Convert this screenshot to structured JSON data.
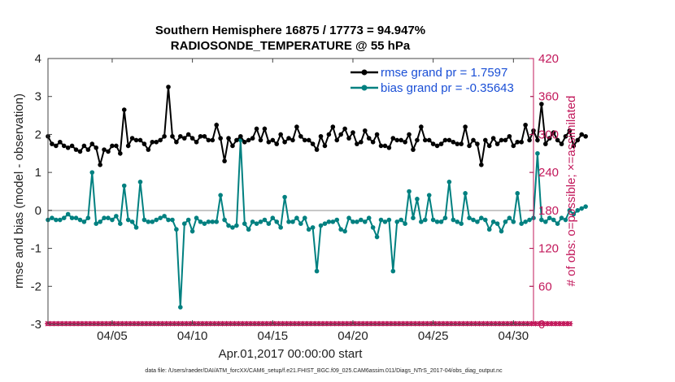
{
  "chart_data": {
    "type": "line",
    "title": "Southern Hemisphere 16875 / 17773 = 94.947%",
    "subtitle": "RADIOSONDE_TEMPERATURE @ 55 hPa",
    "xlabel": "Apr.01,2017 00:00:00 start",
    "ylabel": "rmse and bias (model - observation)",
    "y2label": "# of obs: o=possible; ×=assimilated",
    "footnote": "data file: /Users/raeder/DAI/ATM_forcXX/CAM6_setup/f.e21.FHIST_BGC.f09_025.CAM6assim.011/Diags_NTrS_2017-04/obs_diag_output.nc",
    "ylim": [
      -3,
      4
    ],
    "y2lim": [
      0,
      420
    ],
    "xlim": [
      1.0,
      31.25
    ],
    "x_ticks": [
      5,
      10,
      15,
      20,
      25,
      30
    ],
    "x_tick_labels": [
      "04/05",
      "04/10",
      "04/15",
      "04/20",
      "04/25",
      "04/30"
    ],
    "y_ticks": [
      "-3",
      "-2",
      "-1",
      "0",
      "1",
      "2",
      "3",
      "4"
    ],
    "y2_ticks": [
      "0",
      "60",
      "120",
      "180",
      "240",
      "300",
      "360",
      "420"
    ],
    "legend": {
      "position": "top-right",
      "entries": [
        "rmse grand pr = 1.7597",
        "bias grand pr = -0.35643"
      ]
    },
    "colors": {
      "rmse": "#000000",
      "bias": "#008080",
      "obs": "#c2185b",
      "legend_text": "#1a4fd6",
      "zero_line": "#c8c8c8"
    },
    "x_start": 1.0,
    "x_step": 0.25,
    "series": [
      {
        "name": "rmse",
        "axis": "left",
        "values": [
          1.95,
          1.75,
          1.7,
          1.8,
          1.7,
          1.65,
          1.7,
          1.6,
          1.55,
          1.7,
          1.6,
          1.75,
          1.65,
          1.2,
          1.6,
          1.55,
          1.7,
          1.7,
          1.5,
          2.65,
          1.7,
          1.9,
          1.85,
          1.85,
          1.75,
          1.6,
          1.8,
          1.8,
          1.85,
          1.95,
          3.25,
          1.95,
          1.8,
          1.95,
          1.9,
          2.0,
          1.9,
          1.8,
          1.95,
          1.95,
          1.85,
          1.85,
          2.25,
          1.9,
          1.3,
          1.9,
          1.7,
          1.85,
          1.95,
          1.8,
          1.85,
          1.9,
          2.15,
          1.85,
          2.15,
          1.8,
          1.85,
          1.75,
          2.0,
          1.8,
          1.9,
          1.85,
          2.2,
          1.95,
          1.85,
          1.85,
          1.75,
          1.6,
          1.95,
          1.7,
          2.0,
          2.2,
          1.85,
          2.0,
          2.15,
          1.9,
          2.05,
          1.75,
          1.8,
          2.1,
          1.9,
          1.8,
          2.0,
          1.7,
          1.7,
          1.65,
          1.9,
          1.85,
          1.85,
          1.8,
          2.0,
          1.6,
          1.85,
          2.2,
          1.85,
          1.85,
          1.75,
          1.7,
          1.75,
          1.85,
          1.85,
          1.8,
          1.75,
          1.75,
          2.2,
          1.7,
          1.85,
          1.75,
          1.2,
          1.85,
          1.7,
          1.9,
          1.75,
          1.85,
          1.85,
          1.95,
          1.7,
          1.8,
          1.8,
          2.25,
          1.85,
          2.1,
          1.85,
          2.8,
          1.75,
          1.9,
          2.05,
          1.85,
          1.75,
          1.95,
          2.1,
          1.7,
          1.85,
          2.0,
          1.95
        ]
      },
      {
        "name": "bias",
        "axis": "left",
        "values": [
          -0.25,
          -0.2,
          -0.25,
          -0.25,
          -0.2,
          -0.1,
          -0.2,
          -0.2,
          -0.25,
          -0.3,
          -0.2,
          1.0,
          -0.35,
          -0.3,
          -0.2,
          -0.2,
          -0.25,
          -0.15,
          -0.35,
          0.65,
          -0.25,
          -0.3,
          -0.45,
          0.75,
          -0.25,
          -0.3,
          -0.3,
          -0.25,
          -0.2,
          -0.15,
          -0.25,
          -0.25,
          -0.5,
          -2.55,
          -0.35,
          -0.25,
          -0.55,
          -0.2,
          -0.3,
          -0.35,
          -0.3,
          -0.3,
          -0.3,
          0.4,
          -0.25,
          -0.4,
          -0.45,
          -0.4,
          1.85,
          -0.35,
          -0.5,
          -0.3,
          -0.35,
          -0.3,
          -0.25,
          -0.35,
          -0.2,
          -0.3,
          -0.45,
          0.35,
          -0.3,
          -0.3,
          -0.2,
          -0.35,
          -0.2,
          -0.5,
          -0.45,
          -1.6,
          -0.4,
          -0.35,
          -0.3,
          -0.3,
          -0.25,
          -0.5,
          -0.55,
          -0.2,
          -0.3,
          -0.3,
          -0.25,
          -0.3,
          -0.2,
          -0.45,
          -0.7,
          -0.25,
          -0.3,
          -0.25,
          -1.6,
          -0.3,
          -0.25,
          -0.35,
          0.5,
          -0.2,
          0.3,
          -0.3,
          -0.25,
          0.4,
          -0.25,
          -0.3,
          -0.3,
          -0.2,
          0.75,
          -0.25,
          -0.3,
          -0.35,
          0.45,
          -0.2,
          -0.25,
          -0.3,
          -0.2,
          -0.25,
          -0.5,
          -0.3,
          -0.35,
          -0.55,
          -0.3,
          -0.2,
          -0.3,
          0.45,
          -0.35,
          -0.3,
          -0.25,
          -0.2,
          1.5,
          -0.25,
          -0.3,
          -0.2,
          -0.25,
          -0.35,
          -0.2,
          -0.25,
          0.0,
          -0.1,
          0.0,
          0.05,
          0.1
        ]
      },
      {
        "name": "possible",
        "axis": "right",
        "values": [
          1,
          1,
          1,
          1,
          1,
          1,
          1,
          1,
          1,
          1,
          1,
          1,
          1,
          1,
          1,
          1,
          1,
          1,
          1,
          1,
          1,
          1,
          1,
          1,
          1,
          1,
          1,
          1,
          1,
          1,
          1,
          1,
          1,
          1,
          1,
          1,
          1,
          1,
          1,
          1,
          1,
          1,
          1,
          1,
          1,
          1,
          1,
          1,
          1,
          1,
          1,
          1,
          1,
          1,
          1,
          1,
          1,
          1,
          1,
          1,
          1,
          1,
          1,
          1,
          1,
          1,
          1,
          1,
          1,
          1,
          1,
          1,
          1,
          1,
          1,
          1,
          1,
          1,
          1,
          1,
          1,
          1,
          1,
          1,
          1,
          1,
          1,
          1,
          1,
          1,
          1,
          1,
          1,
          1,
          1,
          1,
          1,
          1,
          1,
          1,
          1,
          1,
          1,
          1,
          1,
          1,
          1,
          1,
          1,
          1,
          1,
          1,
          1,
          1,
          1,
          1,
          1,
          1,
          1,
          1,
          1,
          1,
          1,
          1,
          1,
          1,
          1,
          1,
          1,
          1,
          1
        ]
      },
      {
        "name": "assimilated",
        "axis": "right",
        "values": [
          1,
          1,
          1,
          1,
          1,
          1,
          1,
          1,
          1,
          1,
          1,
          1,
          1,
          1,
          1,
          1,
          1,
          1,
          1,
          1,
          1,
          1,
          1,
          1,
          1,
          1,
          1,
          1,
          1,
          1,
          1,
          1,
          1,
          1,
          1,
          1,
          1,
          1,
          1,
          1,
          1,
          1,
          1,
          1,
          1,
          1,
          1,
          1,
          1,
          1,
          1,
          1,
          1,
          1,
          1,
          1,
          1,
          1,
          1,
          1,
          1,
          1,
          1,
          1,
          1,
          1,
          1,
          1,
          1,
          1,
          1,
          1,
          1,
          1,
          1,
          1,
          1,
          1,
          1,
          1,
          1,
          1,
          1,
          1,
          1,
          1,
          1,
          1,
          1,
          1,
          1,
          1,
          1,
          1,
          1,
          1,
          1,
          1,
          1,
          1,
          1,
          1,
          1,
          1,
          1,
          1,
          1,
          1,
          1,
          1,
          1,
          1,
          1,
          1,
          1,
          1,
          1,
          1,
          1,
          1,
          1,
          1,
          1,
          1,
          1,
          1,
          1,
          1,
          1,
          1,
          1
        ]
      }
    ]
  }
}
